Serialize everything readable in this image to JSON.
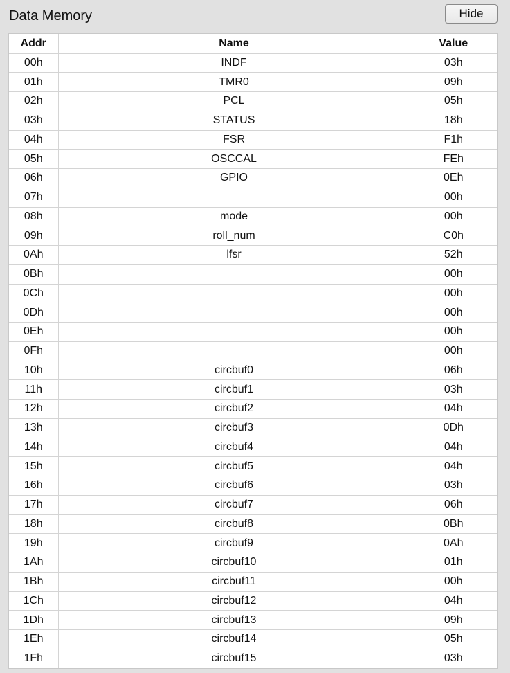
{
  "panel": {
    "title": "Data Memory",
    "hide_label": "Hide"
  },
  "table": {
    "headers": [
      "Addr",
      "Name",
      "Value"
    ],
    "rows": [
      [
        "00h",
        "INDF",
        "03h"
      ],
      [
        "01h",
        "TMR0",
        "09h"
      ],
      [
        "02h",
        "PCL",
        "05h"
      ],
      [
        "03h",
        "STATUS",
        "18h"
      ],
      [
        "04h",
        "FSR",
        "F1h"
      ],
      [
        "05h",
        "OSCCAL",
        "FEh"
      ],
      [
        "06h",
        "GPIO",
        "0Eh"
      ],
      [
        "07h",
        "",
        "00h"
      ],
      [
        "08h",
        "mode",
        "00h"
      ],
      [
        "09h",
        "roll_num",
        "C0h"
      ],
      [
        "0Ah",
        "lfsr",
        "52h"
      ],
      [
        "0Bh",
        "",
        "00h"
      ],
      [
        "0Ch",
        "",
        "00h"
      ],
      [
        "0Dh",
        "",
        "00h"
      ],
      [
        "0Eh",
        "",
        "00h"
      ],
      [
        "0Fh",
        "",
        "00h"
      ],
      [
        "10h",
        "circbuf0",
        "06h"
      ],
      [
        "11h",
        "circbuf1",
        "03h"
      ],
      [
        "12h",
        "circbuf2",
        "04h"
      ],
      [
        "13h",
        "circbuf3",
        "0Dh"
      ],
      [
        "14h",
        "circbuf4",
        "04h"
      ],
      [
        "15h",
        "circbuf5",
        "04h"
      ],
      [
        "16h",
        "circbuf6",
        "03h"
      ],
      [
        "17h",
        "circbuf7",
        "06h"
      ],
      [
        "18h",
        "circbuf8",
        "0Bh"
      ],
      [
        "19h",
        "circbuf9",
        "0Ah"
      ],
      [
        "1Ah",
        "circbuf10",
        "01h"
      ],
      [
        "1Bh",
        "circbuf11",
        "00h"
      ],
      [
        "1Ch",
        "circbuf12",
        "04h"
      ],
      [
        "1Dh",
        "circbuf13",
        "09h"
      ],
      [
        "1Eh",
        "circbuf14",
        "05h"
      ],
      [
        "1Fh",
        "circbuf15",
        "03h"
      ]
    ]
  }
}
